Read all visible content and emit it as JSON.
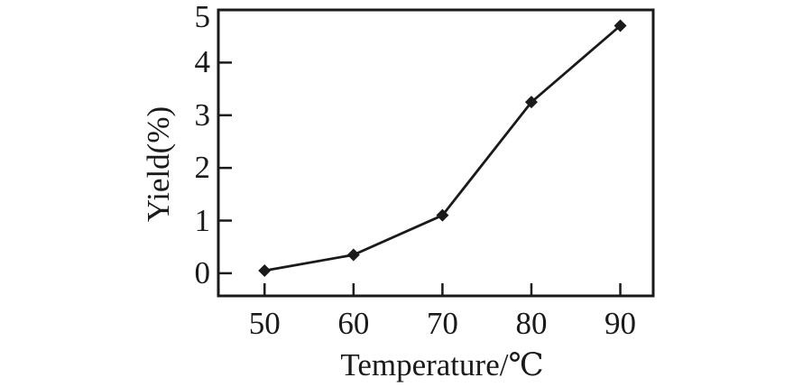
{
  "chart_data": {
    "type": "line",
    "title": "",
    "xlabel": "Temperature/℃",
    "ylabel": "Yield(%)",
    "x": [
      50,
      60,
      70,
      80,
      90
    ],
    "series": [
      {
        "name": "Yield",
        "values": [
          0.05,
          0.35,
          1.1,
          3.25,
          4.7
        ]
      }
    ],
    "xticks": [
      50,
      60,
      70,
      80,
      90
    ],
    "yticks": [
      0,
      1,
      2,
      3,
      4,
      5
    ],
    "xlim": [
      44.8,
      93.7
    ],
    "ylim": [
      -0.43,
      5
    ],
    "grid": false,
    "legend": false,
    "marker": "diamond",
    "line_color": "#1a1a1a",
    "background": "#ffffff"
  }
}
